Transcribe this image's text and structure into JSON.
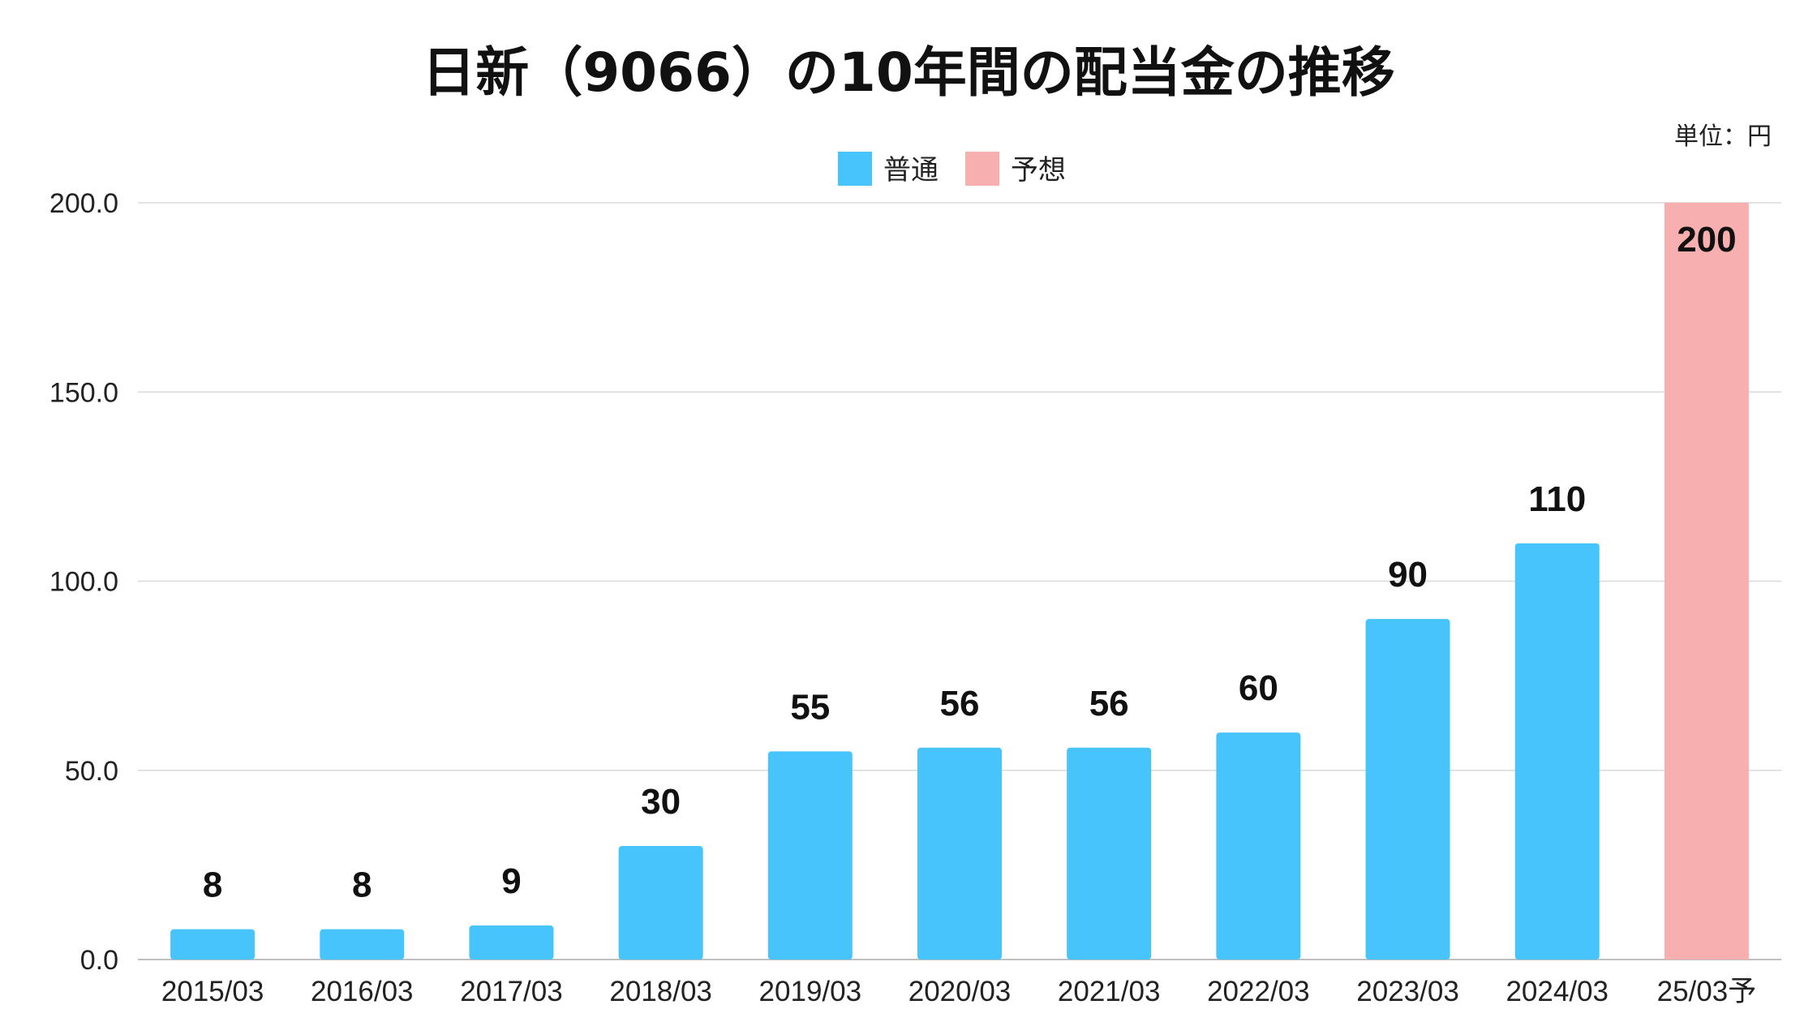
{
  "chart_data": {
    "type": "bar",
    "title": "日新（9066）の10年間の配当金の推移",
    "unit_label": "単位：円",
    "categories": [
      "2015/03",
      "2016/03",
      "2017/03",
      "2018/03",
      "2019/03",
      "2020/03",
      "2021/03",
      "2022/03",
      "2023/03",
      "2024/03",
      "25/03予"
    ],
    "series": [
      {
        "name": "普通",
        "color": "#48C4FC",
        "values": [
          8,
          8,
          9,
          30,
          55,
          56,
          56,
          60,
          90,
          110,
          null
        ]
      },
      {
        "name": "予想",
        "color": "#F7AFAF",
        "values": [
          null,
          null,
          null,
          null,
          null,
          null,
          null,
          null,
          null,
          null,
          200
        ]
      }
    ],
    "data_labels": [
      "8",
      "8",
      "9",
      "30",
      "55",
      "56",
      "56",
      "60",
      "90",
      "110",
      "200"
    ],
    "ylim": [
      0,
      200
    ],
    "yticks": [
      "0.0",
      "50.0",
      "100.0",
      "150.0",
      "200.0"
    ],
    "ytick_values": [
      0,
      50,
      100,
      150,
      200
    ],
    "grid": true,
    "legend_position": "top-center"
  }
}
